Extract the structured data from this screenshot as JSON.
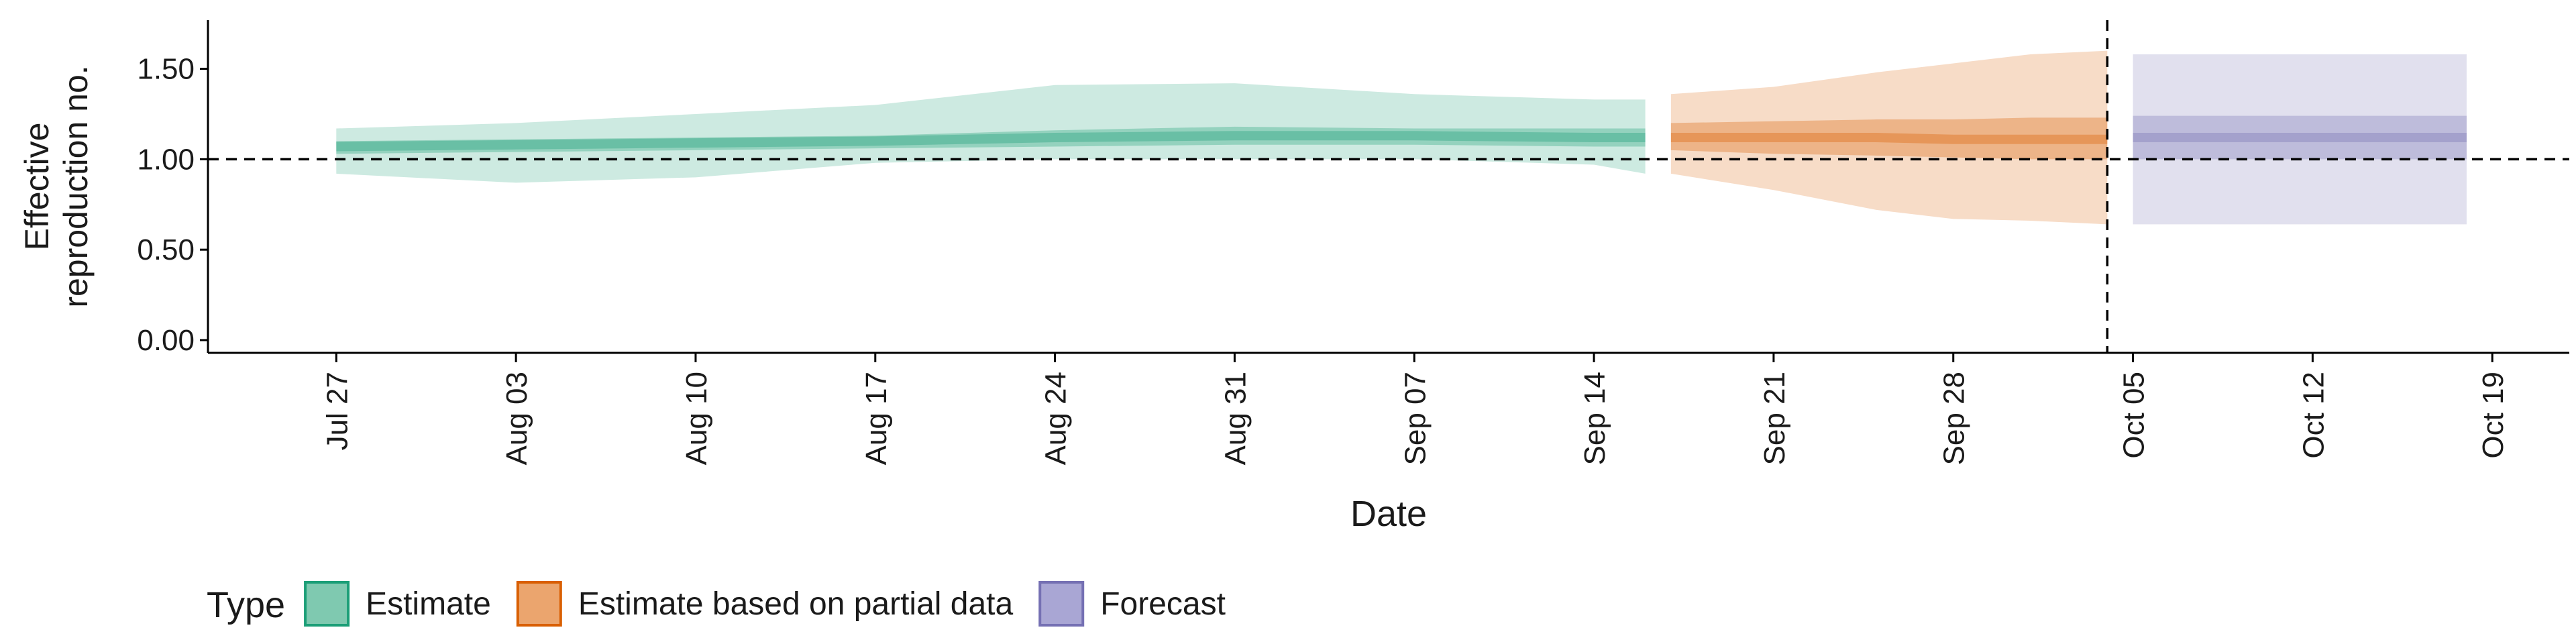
{
  "chart_data": {
    "type": "area",
    "title": "",
    "xlabel": "Date",
    "ylabel_lines": [
      "Effective",
      "reproduction no."
    ],
    "ylim": [
      0,
      1.68
    ],
    "xlim": [
      "2020-07-22",
      "2020-10-22"
    ],
    "grid": false,
    "x_ticks": [
      {
        "date": "2020-07-27",
        "label": "Jul 27"
      },
      {
        "date": "2020-08-03",
        "label": "Aug 03"
      },
      {
        "date": "2020-08-10",
        "label": "Aug 10"
      },
      {
        "date": "2020-08-17",
        "label": "Aug 17"
      },
      {
        "date": "2020-08-24",
        "label": "Aug 24"
      },
      {
        "date": "2020-08-31",
        "label": "Aug 31"
      },
      {
        "date": "2020-09-07",
        "label": "Sep 07"
      },
      {
        "date": "2020-09-14",
        "label": "Sep 14"
      },
      {
        "date": "2020-09-21",
        "label": "Sep 21"
      },
      {
        "date": "2020-09-28",
        "label": "Sep 28"
      },
      {
        "date": "2020-10-05",
        "label": "Oct 05"
      },
      {
        "date": "2020-10-12",
        "label": "Oct 12"
      },
      {
        "date": "2020-10-19",
        "label": "Oct 19"
      }
    ],
    "y_ticks": [
      {
        "value": 0.0,
        "label": "0.00"
      },
      {
        "value": 0.5,
        "label": "0.50"
      },
      {
        "value": 1.0,
        "label": "1.00"
      },
      {
        "value": 1.5,
        "label": "1.50"
      }
    ],
    "reference_lines": [
      {
        "orientation": "horizontal",
        "y": 1.0,
        "style": "dashed"
      },
      {
        "orientation": "vertical",
        "x": "2020-10-04",
        "style": "dashed"
      }
    ],
    "legend": {
      "title": "Type",
      "placement": "bottom",
      "entries": [
        {
          "label": "Estimate",
          "fill": "#7fc9b0",
          "border": "#1b9e77"
        },
        {
          "label": "Estimate based on partial data",
          "fill": "#eba56e",
          "border": "#d95f02"
        },
        {
          "label": "Forecast",
          "fill": "#a9a6d4",
          "border": "#7570b3"
        }
      ]
    },
    "series": [
      {
        "name": "Estimate",
        "color": "#1b9e77",
        "points": [
          {
            "x": "2020-07-27",
            "lower_90": 0.92,
            "upper_90": 1.17,
            "lower_50": 1.03,
            "upper_50": 1.1,
            "median": 1.07
          },
          {
            "x": "2020-08-03",
            "lower_90": 0.87,
            "upper_90": 1.2,
            "lower_50": 1.04,
            "upper_50": 1.11,
            "median": 1.08
          },
          {
            "x": "2020-08-10",
            "lower_90": 0.9,
            "upper_90": 1.25,
            "lower_50": 1.05,
            "upper_50": 1.12,
            "median": 1.09
          },
          {
            "x": "2020-08-17",
            "lower_90": 0.98,
            "upper_90": 1.3,
            "lower_50": 1.06,
            "upper_50": 1.13,
            "median": 1.1
          },
          {
            "x": "2020-08-24",
            "lower_90": 1.0,
            "upper_90": 1.41,
            "lower_50": 1.07,
            "upper_50": 1.16,
            "median": 1.12
          },
          {
            "x": "2020-08-31",
            "lower_90": 1.0,
            "upper_90": 1.42,
            "lower_50": 1.08,
            "upper_50": 1.18,
            "median": 1.13
          },
          {
            "x": "2020-09-07",
            "lower_90": 1.0,
            "upper_90": 1.36,
            "lower_50": 1.08,
            "upper_50": 1.17,
            "median": 1.13
          },
          {
            "x": "2020-09-14",
            "lower_90": 0.97,
            "upper_90": 1.33,
            "lower_50": 1.07,
            "upper_50": 1.17,
            "median": 1.12
          },
          {
            "x": "2020-09-16",
            "lower_90": 0.92,
            "upper_90": 1.33,
            "lower_50": 1.07,
            "upper_50": 1.17,
            "median": 1.12
          }
        ]
      },
      {
        "name": "Estimate based on partial data",
        "color": "#d95f02",
        "points": [
          {
            "x": "2020-09-17",
            "lower_90": 0.92,
            "upper_90": 1.36,
            "lower_50": 1.05,
            "upper_50": 1.2,
            "median": 1.12
          },
          {
            "x": "2020-09-21",
            "lower_90": 0.83,
            "upper_90": 1.4,
            "lower_50": 1.03,
            "upper_50": 1.21,
            "median": 1.12
          },
          {
            "x": "2020-09-25",
            "lower_90": 0.72,
            "upper_90": 1.48,
            "lower_50": 1.02,
            "upper_50": 1.22,
            "median": 1.12
          },
          {
            "x": "2020-09-28",
            "lower_90": 0.67,
            "upper_90": 1.53,
            "lower_50": 1.01,
            "upper_50": 1.22,
            "median": 1.11
          },
          {
            "x": "2020-10-01",
            "lower_90": 0.66,
            "upper_90": 1.58,
            "lower_50": 1.0,
            "upper_50": 1.23,
            "median": 1.11
          },
          {
            "x": "2020-10-04",
            "lower_90": 0.64,
            "upper_90": 1.6,
            "lower_50": 1.0,
            "upper_50": 1.23,
            "median": 1.11
          }
        ]
      },
      {
        "name": "Forecast",
        "color": "#7570b3",
        "points": [
          {
            "x": "2020-10-05",
            "lower_90": 0.64,
            "upper_90": 1.58,
            "lower_50": 1.0,
            "upper_50": 1.24,
            "median": 1.12
          },
          {
            "x": "2020-10-18",
            "lower_90": 0.64,
            "upper_90": 1.58,
            "lower_50": 1.0,
            "upper_50": 1.24,
            "median": 1.12
          }
        ]
      }
    ]
  }
}
